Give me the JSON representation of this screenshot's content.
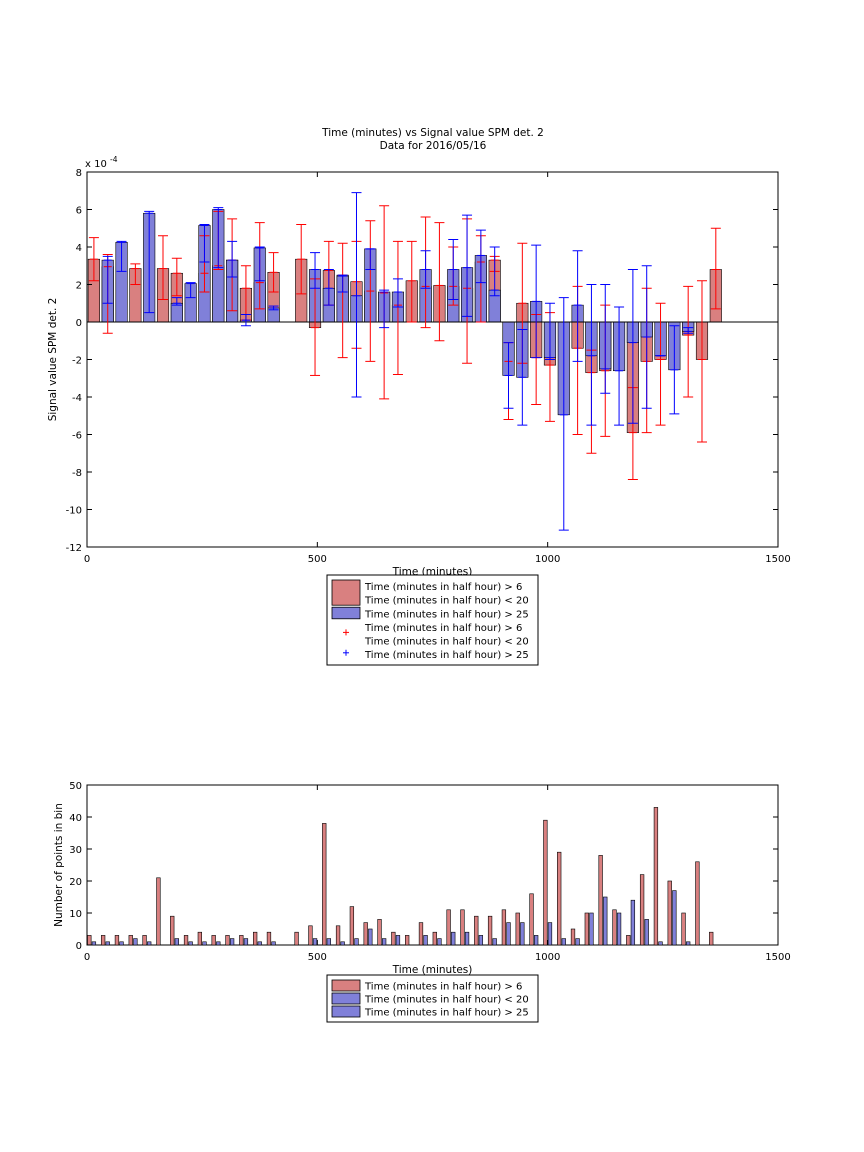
{
  "figure": {
    "title_line1": "Time (minutes) vs Signal value SPM det. 2",
    "title_line2": "Data for 2016/05/16"
  },
  "colors": {
    "red_bar": "#d98080",
    "blue_bar": "#8080d9",
    "red_err": "#ff0000",
    "blue_err": "#0000ff"
  },
  "chart_data": [
    {
      "type": "bar",
      "title": "Time (minutes) vs Signal value SPM det. 2",
      "subtitle": "Data for 2016/05/16",
      "xlabel": "Time (minutes)",
      "ylabel": "Signal value SPM det. 2",
      "y_multiplier": "x 10",
      "y_exponent": "-4",
      "xlim": [
        0,
        1500
      ],
      "ylim": [
        -12,
        8
      ],
      "xticks": [
        0,
        500,
        1000,
        1500
      ],
      "yticks": [
        -12,
        -10,
        -8,
        -6,
        -4,
        -2,
        0,
        2,
        4,
        6,
        8
      ],
      "grid": false,
      "legend": [
        {
          "marker": "bar-red",
          "line1": "Time (minutes in half hour) > 6",
          "line2": "Time (minutes in half hour) < 20"
        },
        {
          "marker": "bar-blue",
          "line1": "Time (minutes in half hour) > 25",
          "line2": ""
        },
        {
          "marker": "plus-red",
          "line1": "Time (minutes in half hour) > 6",
          "line2": "Time (minutes in half hour) < 20"
        },
        {
          "marker": "plus-blue",
          "line1": "Time (minutes in half hour) > 25",
          "line2": ""
        }
      ],
      "bar_width": 25,
      "series": [
        {
          "name": "Time (minutes in half hour) > 6 Time (minutes in half hour) < 20",
          "color": "red",
          "points": [
            {
              "x": 15,
              "y": 3.35,
              "lo": 2.2,
              "hi": 4.5
            },
            {
              "x": 45,
              "y": 2.95,
              "lo": -0.6,
              "hi": 3.6
            },
            {
              "x": 105,
              "y": 2.85,
              "lo": 2.0,
              "hi": 3.1
            },
            {
              "x": 165,
              "y": 2.85,
              "lo": 1.2,
              "hi": 4.6
            },
            {
              "x": 195,
              "y": 2.6,
              "lo": 1.4,
              "hi": 3.4
            },
            {
              "x": 255,
              "y": 2.6,
              "lo": 1.6,
              "hi": 4.6
            },
            {
              "x": 285,
              "y": 3.0,
              "lo": 2.8,
              "hi": 5.9
            },
            {
              "x": 315,
              "y": 3.3,
              "lo": 0.6,
              "hi": 5.5
            },
            {
              "x": 345,
              "y": 1.8,
              "lo": 0.1,
              "hi": 3.0
            },
            {
              "x": 375,
              "y": 2.1,
              "lo": 0.7,
              "hi": 5.3
            },
            {
              "x": 405,
              "y": 2.65,
              "lo": 1.6,
              "hi": 3.7
            },
            {
              "x": 465,
              "y": 3.35,
              "lo": 1.5,
              "hi": 5.2
            },
            {
              "x": 495,
              "y": -0.3,
              "lo": -2.85,
              "hi": 2.3
            },
            {
              "x": 525,
              "y": 2.75,
              "lo": 0.9,
              "hi": 4.3
            },
            {
              "x": 555,
              "y": 2.5,
              "lo": -1.9,
              "hi": 4.2
            },
            {
              "x": 585,
              "y": 2.15,
              "lo": -1.4,
              "hi": 4.3
            },
            {
              "x": 615,
              "y": 1.65,
              "lo": -2.1,
              "hi": 5.4
            },
            {
              "x": 645,
              "y": 1.55,
              "lo": -4.1,
              "hi": 6.2
            },
            {
              "x": 675,
              "y": 0.9,
              "lo": -2.8,
              "hi": 4.3
            },
            {
              "x": 705,
              "y": 2.2,
              "lo": 0.0,
              "hi": 4.3
            },
            {
              "x": 735,
              "y": 1.9,
              "lo": -0.3,
              "hi": 5.6
            },
            {
              "x": 765,
              "y": 1.95,
              "lo": -1.0,
              "hi": 5.3
            },
            {
              "x": 795,
              "y": 1.9,
              "lo": 0.9,
              "hi": 4.0
            },
            {
              "x": 825,
              "y": 1.8,
              "lo": -2.2,
              "hi": 5.5
            },
            {
              "x": 855,
              "y": 3.2,
              "lo": 0.0,
              "hi": 4.6
            },
            {
              "x": 885,
              "y": 3.3,
              "lo": 2.7,
              "hi": 3.5
            },
            {
              "x": 915,
              "y": -2.1,
              "lo": -5.2,
              "hi": -1.1
            },
            {
              "x": 945,
              "y": 1.0,
              "lo": -2.2,
              "hi": 4.2
            },
            {
              "x": 975,
              "y": -1.9,
              "lo": -4.4,
              "hi": 0.4
            },
            {
              "x": 1005,
              "y": -2.3,
              "lo": -5.3,
              "hi": 0.5
            },
            {
              "x": 1065,
              "y": -1.4,
              "lo": -6.0,
              "hi": 1.9
            },
            {
              "x": 1095,
              "y": -2.7,
              "lo": -7.0,
              "hi": -1.5
            },
            {
              "x": 1125,
              "y": -2.6,
              "lo": -6.1,
              "hi": 0.9
            },
            {
              "x": 1185,
              "y": -5.9,
              "lo": -8.4,
              "hi": -3.5
            },
            {
              "x": 1215,
              "y": -2.1,
              "lo": -5.9,
              "hi": 1.8
            },
            {
              "x": 1245,
              "y": -2.0,
              "lo": -5.5,
              "hi": 1.0
            },
            {
              "x": 1305,
              "y": -0.7,
              "lo": -4.0,
              "hi": 1.9
            },
            {
              "x": 1335,
              "y": -2.0,
              "lo": -6.4,
              "hi": 2.2
            },
            {
              "x": 1365,
              "y": 2.8,
              "lo": 0.7,
              "hi": 5.0
            }
          ]
        },
        {
          "name": "Time (minutes in half hour) > 25",
          "color": "blue",
          "points": [
            {
              "x": 45,
              "y": 3.3,
              "lo": 1.0,
              "hi": 3.5
            },
            {
              "x": 75,
              "y": 4.25,
              "lo": 2.7,
              "hi": 4.3
            },
            {
              "x": 135,
              "y": 5.8,
              "lo": 0.5,
              "hi": 5.9
            },
            {
              "x": 195,
              "y": 1.0,
              "lo": 0.9,
              "hi": 1.3
            },
            {
              "x": 225,
              "y": 2.05,
              "lo": 1.3,
              "hi": 2.1
            },
            {
              "x": 255,
              "y": 5.15,
              "lo": 3.2,
              "hi": 5.2
            },
            {
              "x": 285,
              "y": 6.0,
              "lo": 2.9,
              "hi": 6.1
            },
            {
              "x": 315,
              "y": 3.3,
              "lo": 2.4,
              "hi": 4.3
            },
            {
              "x": 345,
              "y": 0.1,
              "lo": -0.2,
              "hi": 0.4
            },
            {
              "x": 375,
              "y": 3.95,
              "lo": 2.2,
              "hi": 4.0
            },
            {
              "x": 405,
              "y": 0.75,
              "lo": 0.65,
              "hi": 0.85
            },
            {
              "x": 495,
              "y": 2.8,
              "lo": 1.8,
              "hi": 3.7
            },
            {
              "x": 525,
              "y": 1.8,
              "lo": 0.9,
              "hi": 2.8
            },
            {
              "x": 555,
              "y": 2.45,
              "lo": 1.6,
              "hi": 2.5
            },
            {
              "x": 585,
              "y": 1.4,
              "lo": -4.0,
              "hi": 6.9
            },
            {
              "x": 615,
              "y": 3.9,
              "lo": 2.8,
              "hi": 3.9
            },
            {
              "x": 645,
              "y": 1.6,
              "lo": -0.3,
              "hi": 1.7
            },
            {
              "x": 675,
              "y": 1.6,
              "lo": 0.8,
              "hi": 2.3
            },
            {
              "x": 735,
              "y": 2.8,
              "lo": 1.8,
              "hi": 3.8
            },
            {
              "x": 795,
              "y": 2.8,
              "lo": 1.2,
              "hi": 4.4
            },
            {
              "x": 825,
              "y": 2.9,
              "lo": 0.3,
              "hi": 5.7
            },
            {
              "x": 855,
              "y": 3.55,
              "lo": 2.1,
              "hi": 4.9
            },
            {
              "x": 885,
              "y": 1.7,
              "lo": 1.4,
              "hi": 4.0
            },
            {
              "x": 915,
              "y": -2.85,
              "lo": -4.6,
              "hi": -1.1
            },
            {
              "x": 945,
              "y": -2.95,
              "lo": -5.5,
              "hi": -0.4
            },
            {
              "x": 975,
              "y": 1.1,
              "lo": -1.9,
              "hi": 4.1
            },
            {
              "x": 1005,
              "y": -1.9,
              "lo": -2.0,
              "hi": 1.0
            },
            {
              "x": 1035,
              "y": -4.95,
              "lo": -11.1,
              "hi": 1.3
            },
            {
              "x": 1065,
              "y": 0.9,
              "lo": -2.1,
              "hi": 3.8
            },
            {
              "x": 1095,
              "y": -1.8,
              "lo": -5.5,
              "hi": 2.0
            },
            {
              "x": 1125,
              "y": -2.5,
              "lo": -3.8,
              "hi": 2.0
            },
            {
              "x": 1155,
              "y": -2.6,
              "lo": -5.5,
              "hi": 0.8
            },
            {
              "x": 1185,
              "y": -1.1,
              "lo": -5.4,
              "hi": 2.8
            },
            {
              "x": 1215,
              "y": -0.8,
              "lo": -4.6,
              "hi": 3.0
            },
            {
              "x": 1245,
              "y": -1.8,
              "lo": -1.8,
              "hi": -1.8
            },
            {
              "x": 1275,
              "y": -2.55,
              "lo": -4.9,
              "hi": -0.2
            },
            {
              "x": 1305,
              "y": -0.5,
              "lo": -0.6,
              "hi": -0.3
            }
          ]
        }
      ]
    },
    {
      "type": "bar",
      "xlabel": "Time (minutes)",
      "ylabel": "Number of points in bin",
      "xlim": [
        0,
        1500
      ],
      "ylim": [
        0,
        50
      ],
      "xticks": [
        0,
        500,
        1000,
        1500
      ],
      "yticks": [
        0,
        10,
        20,
        30,
        40,
        50
      ],
      "grid": false,
      "legend": [
        {
          "marker": "bar-red",
          "line1": "Time (minutes in half hour) > 6",
          "line2": ""
        },
        {
          "marker": "bar-blue",
          "line1": "Time (minutes in half hour) < 20",
          "line2": ""
        },
        {
          "marker": "bar-blue",
          "line1": "Time (minutes in half hour) > 25",
          "line2": ""
        }
      ],
      "bar_width": 8,
      "series": [
        {
          "name": "Time (minutes in half hour) > 6",
          "color": "red",
          "x": [
            5,
            35,
            65,
            95,
            125,
            155,
            185,
            215,
            245,
            275,
            305,
            335,
            365,
            395,
            455,
            485,
            515,
            545,
            575,
            605,
            635,
            665,
            695,
            725,
            755,
            785,
            815,
            845,
            875,
            905,
            935,
            965,
            995,
            1025,
            1055,
            1085,
            1115,
            1145,
            1175,
            1205,
            1235,
            1265,
            1295,
            1325,
            1355
          ],
          "values": [
            3,
            3,
            3,
            3,
            3,
            21,
            9,
            3,
            4,
            3,
            3,
            3,
            4,
            4,
            4,
            6,
            38,
            6,
            12,
            7,
            8,
            4,
            3,
            7,
            4,
            11,
            11,
            9,
            9,
            11,
            10,
            16,
            39,
            29,
            5,
            10,
            28,
            11,
            3,
            22,
            43,
            20,
            10,
            26,
            4
          ]
        },
        {
          "name": "Time (minutes in half hour) > 25",
          "color": "blue",
          "x": [
            15,
            45,
            75,
            105,
            135,
            195,
            225,
            255,
            285,
            315,
            345,
            375,
            405,
            495,
            525,
            555,
            585,
            615,
            645,
            675,
            735,
            765,
            795,
            825,
            855,
            885,
            915,
            945,
            975,
            1005,
            1035,
            1065,
            1095,
            1125,
            1155,
            1185,
            1215,
            1245,
            1275,
            1305
          ],
          "values": [
            1,
            1,
            1,
            2,
            1,
            2,
            1,
            1,
            1,
            2,
            2,
            1,
            1,
            2,
            2,
            1,
            2,
            5,
            2,
            3,
            3,
            2,
            4,
            4,
            3,
            2,
            7,
            7,
            3,
            7,
            2,
            2,
            10,
            15,
            10,
            14,
            8,
            1,
            17,
            1
          ]
        }
      ]
    }
  ]
}
